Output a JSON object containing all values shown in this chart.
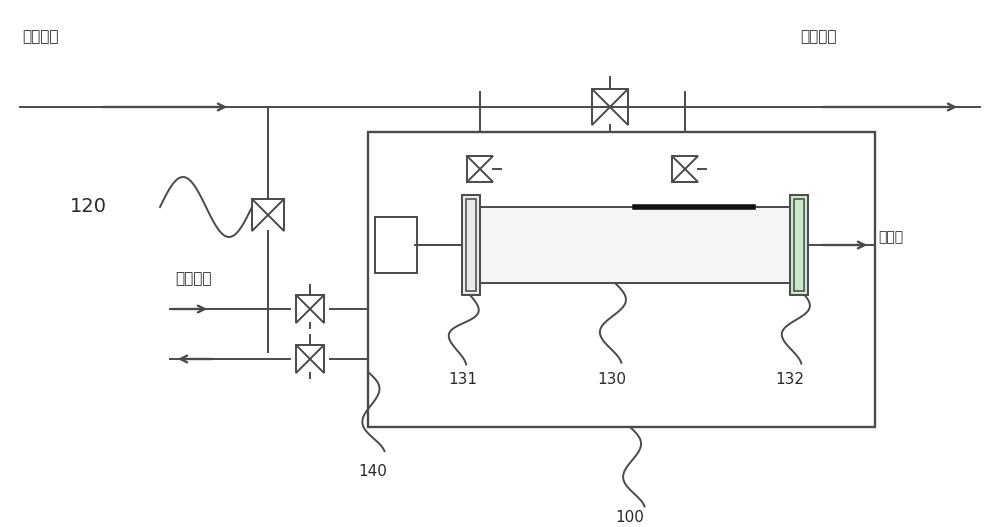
{
  "bg_color": "#ffffff",
  "line_color": "#4a4a4a",
  "text_color": "#2a2a2a",
  "title_left": "气体流向",
  "title_right": "气体流向",
  "label_120": "120",
  "label_100": "100",
  "label_130": "130",
  "label_131": "131",
  "label_132": "132",
  "label_140": "140",
  "label_ir": "红外光",
  "label_n2": "氮气冲洗",
  "font_size_title": 11,
  "font_size_label": 11
}
